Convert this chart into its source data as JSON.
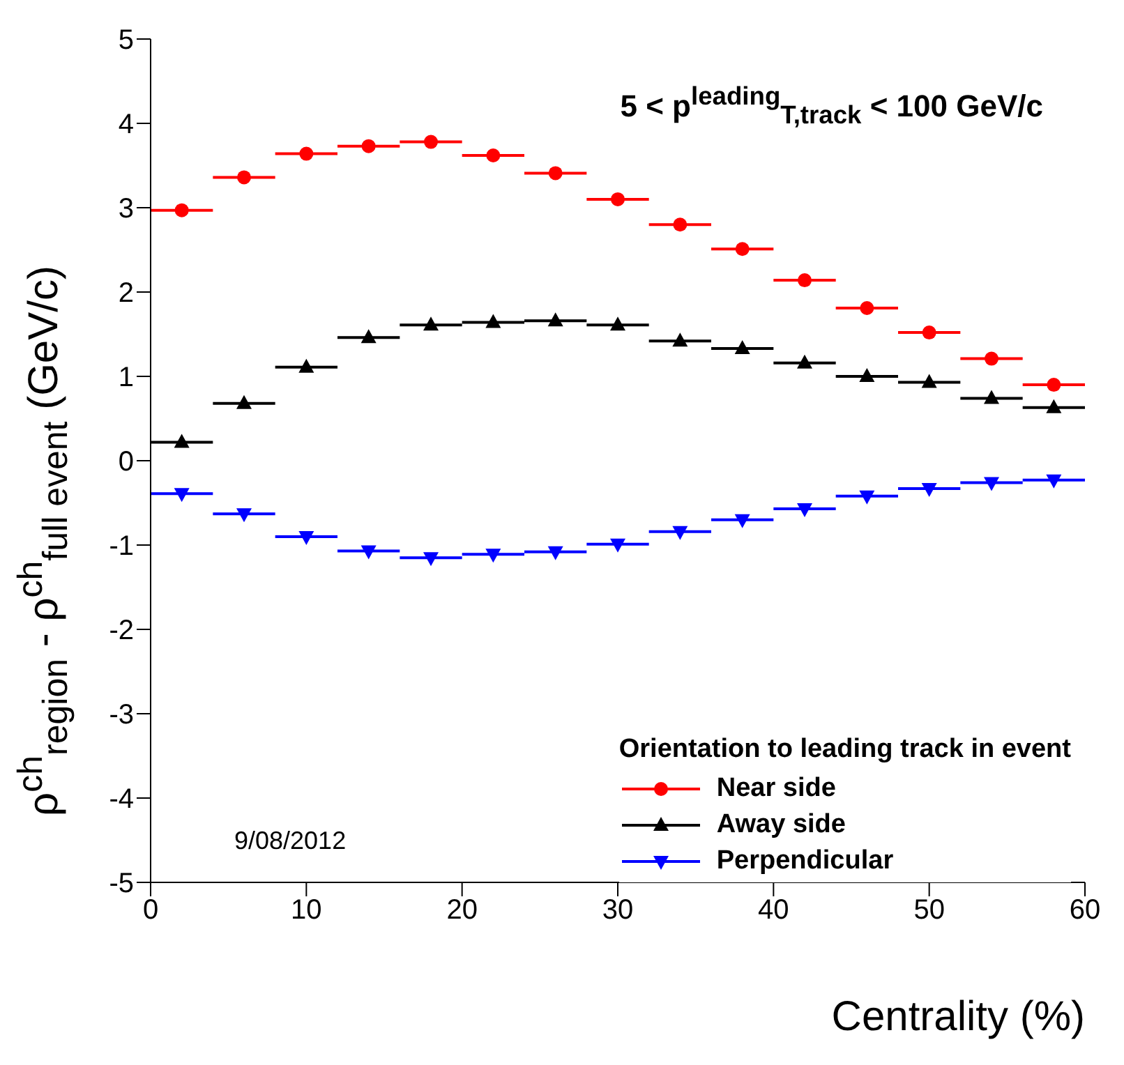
{
  "chart_data": {
    "type": "scatter",
    "title": "5 < p$^{leading}$$_{T,track}$ < 100 GeV/c",
    "xlabel": "Centrality (%)",
    "ylabel": "ρ$^{ch}$$_{region}$ - ρ$^{ch}$$_{full event}$ (GeV/c)",
    "legend_title": "Orientation to leading track in event",
    "legend": "bottom right",
    "grid": false,
    "x": [
      2,
      6,
      10,
      14,
      18,
      22,
      26,
      30,
      34,
      38,
      42,
      46,
      50,
      54,
      58
    ],
    "xlim": [
      0,
      60
    ],
    "xticks": [
      0,
      10,
      20,
      30,
      40,
      50,
      60
    ],
    "ylim": [
      -5,
      5
    ],
    "yticks": [
      -5,
      -4,
      -3,
      -2,
      -1,
      0,
      1,
      2,
      3,
      4,
      5
    ],
    "series": [
      {
        "name": "Near side",
        "color": "#ff0000",
        "marker": "circle",
        "values": [
          2.97,
          3.36,
          3.64,
          3.73,
          3.78,
          3.62,
          3.41,
          3.1,
          2.8,
          2.51,
          2.14,
          1.81,
          1.52,
          1.21,
          0.9
        ],
        "xerrors": [
          2,
          2,
          2,
          2,
          2,
          2,
          2,
          2,
          2,
          2,
          2,
          2,
          2,
          2,
          2
        ]
      },
      {
        "name": "Away side",
        "color": "#000000",
        "marker": "triangle",
        "values": [
          0.22,
          0.68,
          1.11,
          1.46,
          1.61,
          1.64,
          1.66,
          1.61,
          1.42,
          1.33,
          1.16,
          1.0,
          0.93,
          0.74,
          0.63
        ],
        "xerrors": [
          2,
          2,
          2,
          2,
          2,
          2,
          2,
          2,
          2,
          2,
          2,
          2,
          2,
          2,
          2
        ]
      },
      {
        "name": "Perpendicular",
        "color": "#0000ff",
        "marker": "triangle-down",
        "values": [
          -0.39,
          -0.63,
          -0.9,
          -1.07,
          -1.15,
          -1.11,
          -1.08,
          -0.99,
          -0.84,
          -0.7,
          -0.57,
          -0.42,
          -0.33,
          -0.26,
          -0.23
        ],
        "xerrors": [
          2,
          2,
          2,
          2,
          2,
          2,
          2,
          2,
          2,
          2,
          2,
          2,
          2,
          2,
          2
        ]
      }
    ],
    "annotations": [
      "9/08/2012"
    ]
  }
}
